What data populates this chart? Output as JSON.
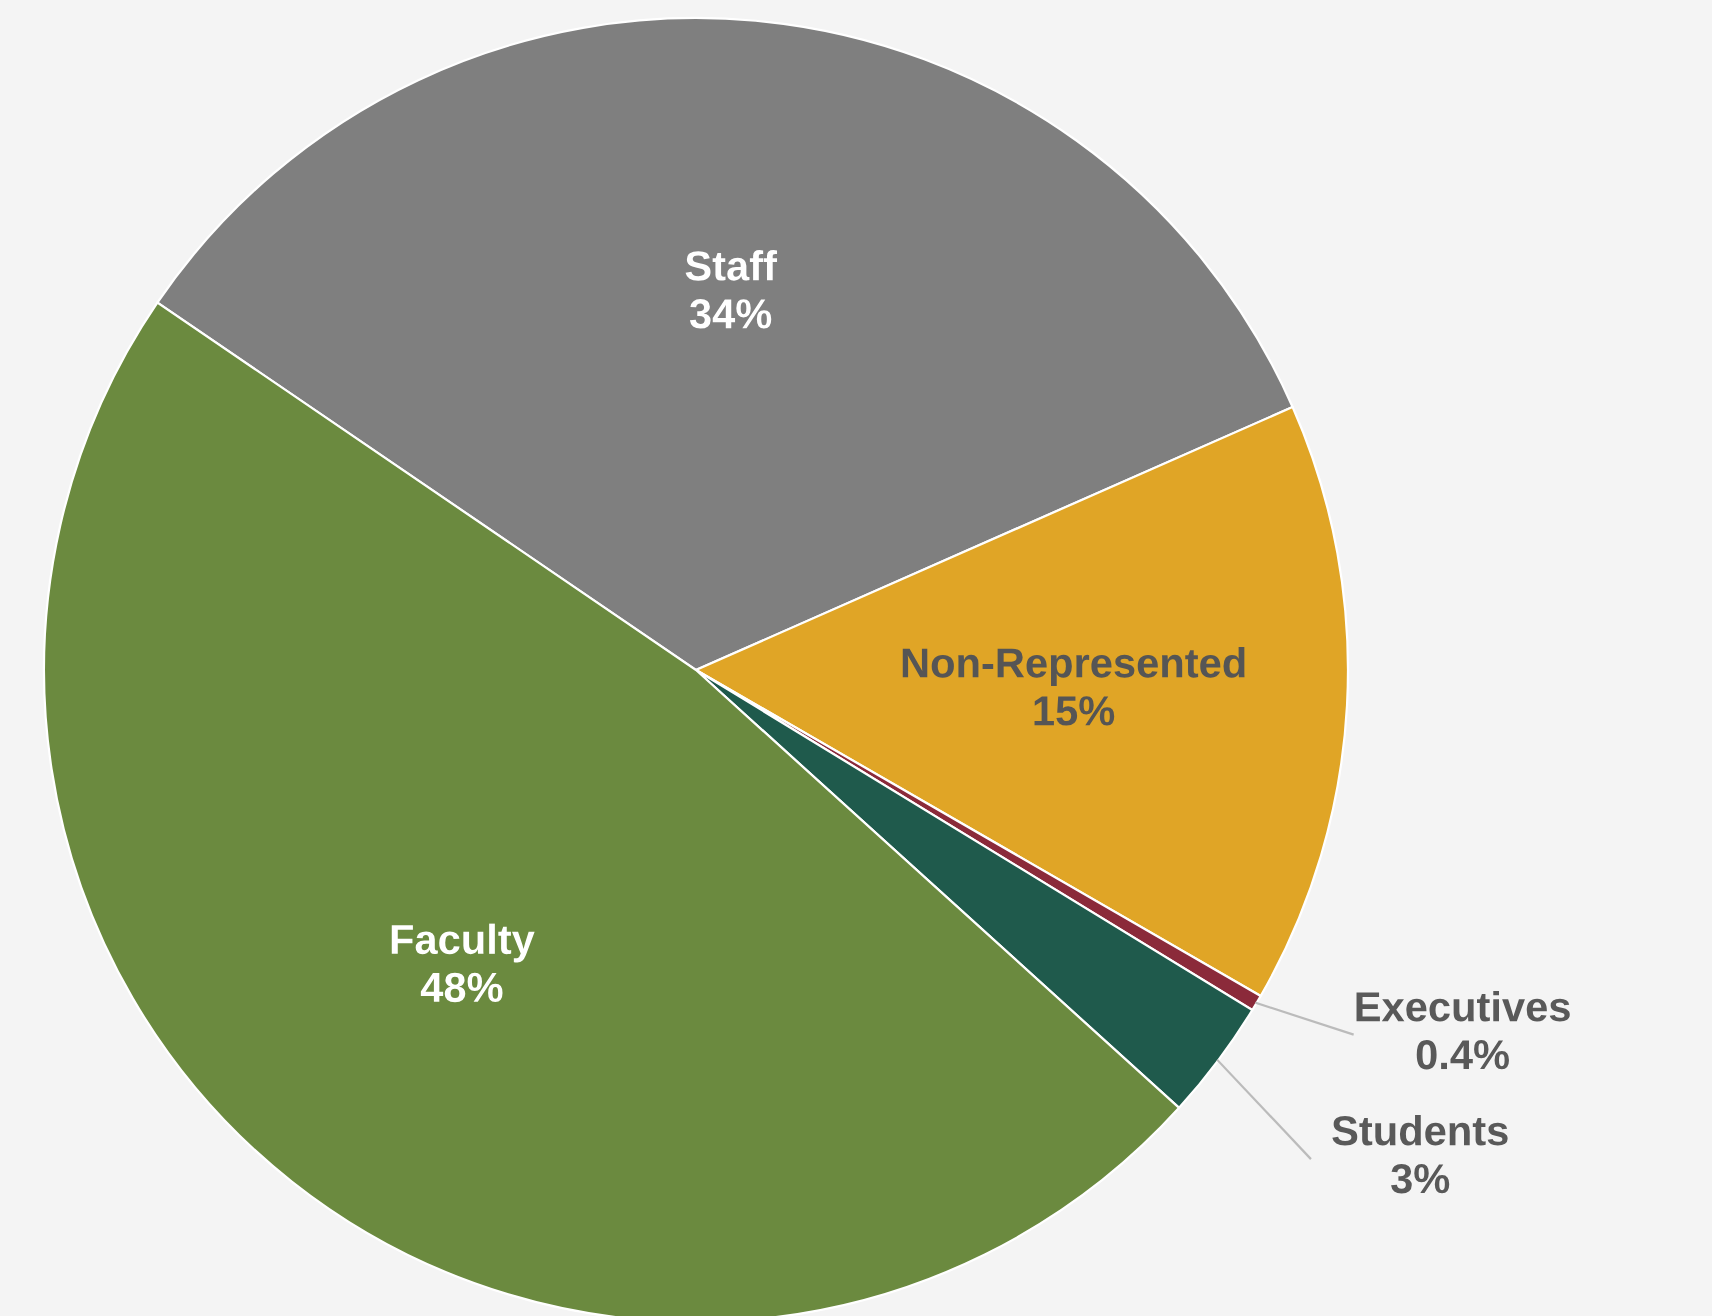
{
  "chart_data": {
    "type": "pie",
    "categories": [
      "Staff",
      "Non-Represented",
      "Executives",
      "Students",
      "Faculty"
    ],
    "values": [
      34,
      15,
      0.4,
      3,
      48
    ],
    "value_labels": [
      "34%",
      "15%",
      "0.4%",
      "3%",
      "48%"
    ],
    "colors": [
      "#7f7f7f",
      "#e0a526",
      "#8b2a3a",
      "#1f5a4c",
      "#6b8a3f"
    ],
    "legend": false
  }
}
